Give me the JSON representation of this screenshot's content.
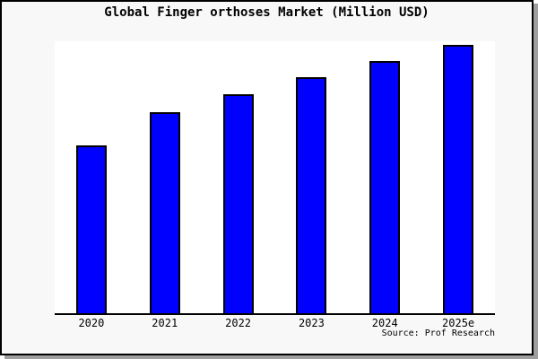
{
  "figure": {
    "background": "#f8f8f8",
    "plot_background": "#ffffff",
    "frame_border_color": "#000000",
    "shadow_color": "#9e9e9e",
    "source_label": "Source: Prof Research"
  },
  "chart_data": {
    "type": "bar",
    "title": "Global Finger orthoses Market (Million USD)",
    "categories": [
      "2020",
      "2021",
      "2022",
      "2023",
      "2024",
      "2025e"
    ],
    "values": [
      187,
      224,
      244,
      263,
      281,
      299
    ],
    "xlabel": "",
    "ylabel": "",
    "ylim": [
      0,
      303
    ],
    "y_axis_visible": false,
    "grid": false,
    "legend": false,
    "bar_color": "#0000ff",
    "bar_edge_color": "#000000",
    "annotation": "Source: Prof Research"
  }
}
